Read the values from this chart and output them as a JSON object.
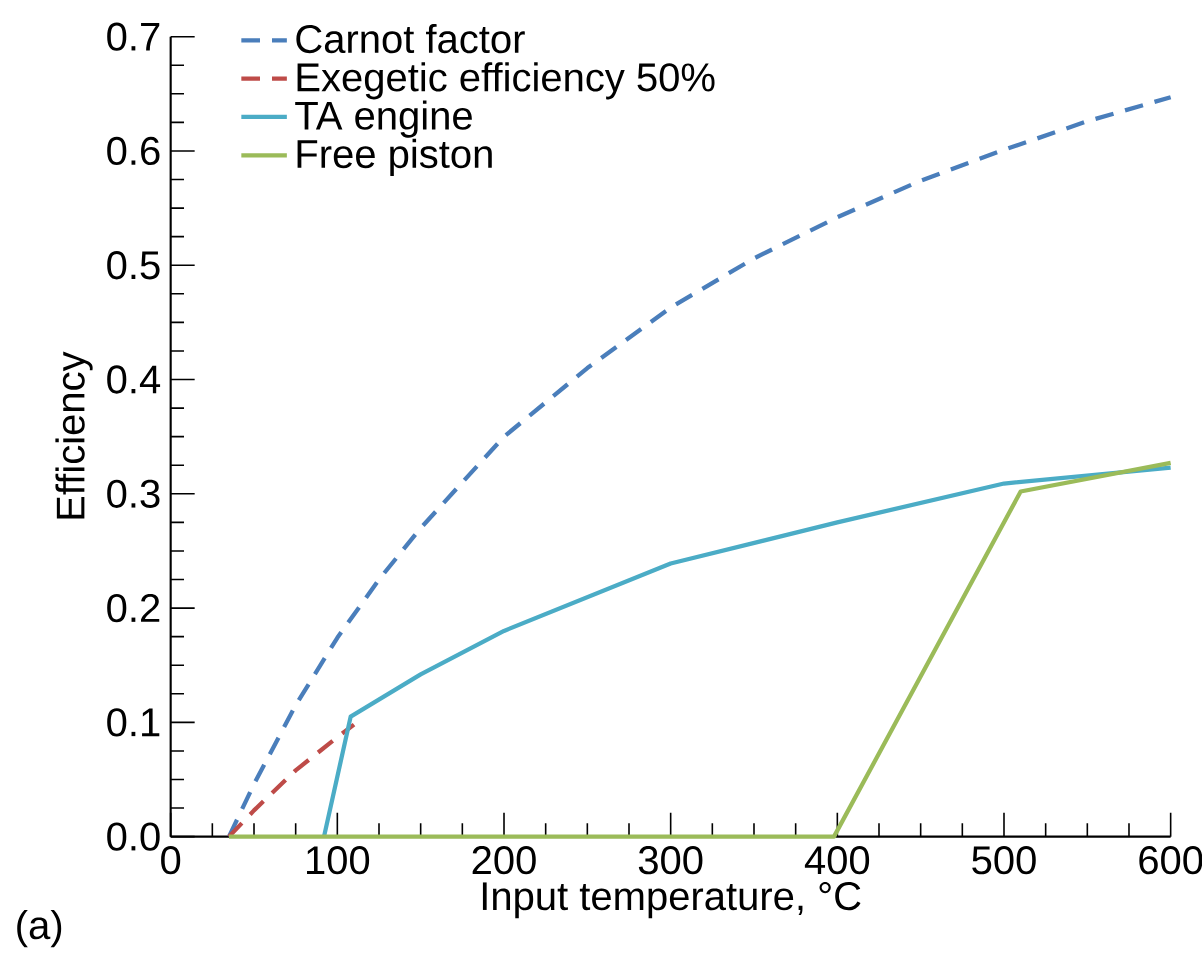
{
  "chart_data": {
    "type": "line",
    "xlabel": "Input temperature, °C",
    "ylabel": "Efficiency",
    "annotations": [
      "(a)"
    ],
    "xlim": [
      0,
      600
    ],
    "ylim": [
      0,
      0.7
    ],
    "xticks": [
      0,
      100,
      200,
      300,
      400,
      500,
      600
    ],
    "yticks": [
      {
        "value": 0,
        "label": "0.0"
      },
      0.1,
      0.2,
      0.3,
      0.4,
      0.5,
      0.6,
      0.7
    ],
    "legend": "top left",
    "grid": false,
    "marker": "none",
    "series": [
      {
        "name": "Carnot factor",
        "color": "#4a7ebb",
        "line_style": "dashed",
        "x": [
          35,
          50,
          75,
          100,
          125,
          150,
          200,
          250,
          300,
          350,
          400,
          450,
          500,
          550,
          600
        ],
        "values": [
          0,
          0.046,
          0.115,
          0.174,
          0.225,
          0.27,
          0.35,
          0.41,
          0.463,
          0.506,
          0.542,
          0.574,
          0.601,
          0.626,
          0.647
        ]
      },
      {
        "name": "Exegetic efficiency 50%",
        "color": "#be4b48",
        "line_style": "dashed",
        "x": [
          35,
          50,
          75,
          100,
          110
        ],
        "values": [
          0,
          0.023,
          0.058,
          0.087,
          0.098
        ]
      },
      {
        "name": "TA engine",
        "color": "#4bacc6",
        "line_style": "solid",
        "x": [
          92,
          108,
          150,
          200,
          300,
          400,
          500,
          600
        ],
        "values": [
          0,
          0.105,
          0.142,
          0.18,
          0.239,
          0.275,
          0.309,
          0.323
        ]
      },
      {
        "name": "Free piston",
        "color": "#9bbb59",
        "line_style": "solid",
        "x": [
          35,
          398,
          510,
          600
        ],
        "values": [
          0,
          0,
          0.302,
          0.327
        ]
      }
    ]
  }
}
